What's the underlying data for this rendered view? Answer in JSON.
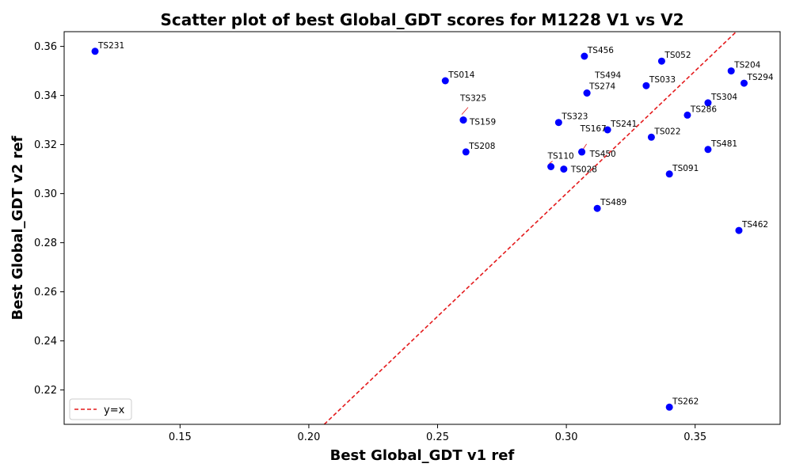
{
  "chart_data": {
    "type": "scatter",
    "title": "Scatter plot of best Global_GDT scores for M1228 V1 vs V2",
    "xlabel": "Best Global_GDT v1 ref",
    "ylabel": "Best Global_GDT v2 ref",
    "xlim": [
      0.105,
      0.383
    ],
    "ylim": [
      0.206,
      0.366
    ],
    "xticks": [
      0.15,
      0.2,
      0.25,
      0.3,
      0.35
    ],
    "xtick_labels": [
      "0.15",
      "0.20",
      "0.25",
      "0.30",
      "0.35"
    ],
    "yticks": [
      0.22,
      0.24,
      0.26,
      0.28,
      0.3,
      0.32,
      0.34,
      0.36
    ],
    "ytick_labels": [
      "0.22",
      "0.24",
      "0.26",
      "0.28",
      "0.30",
      "0.32",
      "0.34",
      "0.36"
    ],
    "grid": false,
    "legend": {
      "placement": "lower-left",
      "entries": [
        "y=x"
      ]
    },
    "reference_line": {
      "label": "y=x",
      "color": "#e41a1c",
      "style": "dashed"
    },
    "point_color": "#0000ff",
    "points": [
      {
        "label": "TS231",
        "x": 0.117,
        "y": 0.358
      },
      {
        "label": "TS014",
        "x": 0.253,
        "y": 0.346
      },
      {
        "label": "TS325",
        "x": 0.26,
        "y": 0.33
      },
      {
        "label": "TS159",
        "x": 0.26,
        "y": 0.33
      },
      {
        "label": "TS208",
        "x": 0.261,
        "y": 0.317
      },
      {
        "label": "TS110",
        "x": 0.294,
        "y": 0.311
      },
      {
        "label": "TS028",
        "x": 0.299,
        "y": 0.31
      },
      {
        "label": "TS323",
        "x": 0.297,
        "y": 0.329
      },
      {
        "label": "TS167",
        "x": 0.306,
        "y": 0.317
      },
      {
        "label": "TS450",
        "x": 0.306,
        "y": 0.317
      },
      {
        "label": "TS456",
        "x": 0.307,
        "y": 0.356
      },
      {
        "label": "TS494",
        "x": 0.308,
        "y": 0.341
      },
      {
        "label": "TS274",
        "x": 0.308,
        "y": 0.341
      },
      {
        "label": "TS489",
        "x": 0.312,
        "y": 0.294
      },
      {
        "label": "TS241",
        "x": 0.316,
        "y": 0.326
      },
      {
        "label": "TS033",
        "x": 0.331,
        "y": 0.344
      },
      {
        "label": "TS022",
        "x": 0.333,
        "y": 0.323
      },
      {
        "label": "TS052",
        "x": 0.337,
        "y": 0.354
      },
      {
        "label": "TS091",
        "x": 0.34,
        "y": 0.308
      },
      {
        "label": "TS262",
        "x": 0.34,
        "y": 0.213
      },
      {
        "label": "TS286",
        "x": 0.347,
        "y": 0.332
      },
      {
        "label": "TS304",
        "x": 0.355,
        "y": 0.337
      },
      {
        "label": "TS481",
        "x": 0.355,
        "y": 0.318
      },
      {
        "label": "TS204",
        "x": 0.364,
        "y": 0.35
      },
      {
        "label": "TS294",
        "x": 0.369,
        "y": 0.345
      },
      {
        "label": "TS462",
        "x": 0.367,
        "y": 0.285
      }
    ]
  }
}
